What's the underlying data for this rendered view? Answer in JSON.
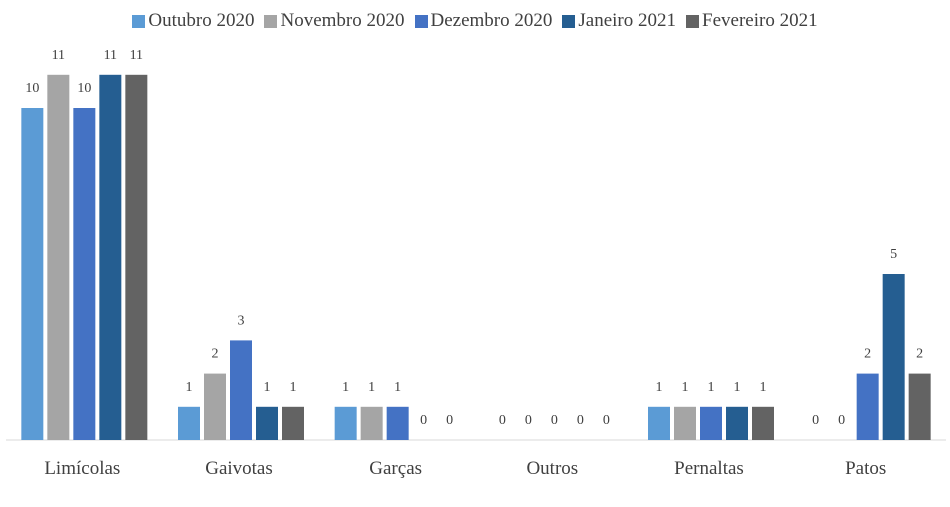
{
  "chart_data": {
    "type": "bar",
    "categories": [
      "Limícolas",
      "Gaivotas",
      "Garças",
      "Outros",
      "Pernaltas",
      "Patos"
    ],
    "series": [
      {
        "name": "Outubro 2020",
        "color": "#5b9bd5",
        "values": [
          10,
          1,
          1,
          0,
          1,
          0
        ]
      },
      {
        "name": "Novembro 2020",
        "color": "#a5a5a5",
        "values": [
          11,
          2,
          1,
          0,
          1,
          0
        ]
      },
      {
        "name": "Dezembro 2020",
        "color": "#4472c4",
        "values": [
          10,
          3,
          1,
          0,
          1,
          2
        ]
      },
      {
        "name": "Janeiro 2021",
        "color": "#255e91",
        "values": [
          11,
          1,
          0,
          0,
          1,
          5
        ]
      },
      {
        "name": "Fevereiro 2021",
        "color": "#636363",
        "values": [
          11,
          1,
          0,
          0,
          1,
          2
        ]
      }
    ],
    "legend": "top"
  }
}
